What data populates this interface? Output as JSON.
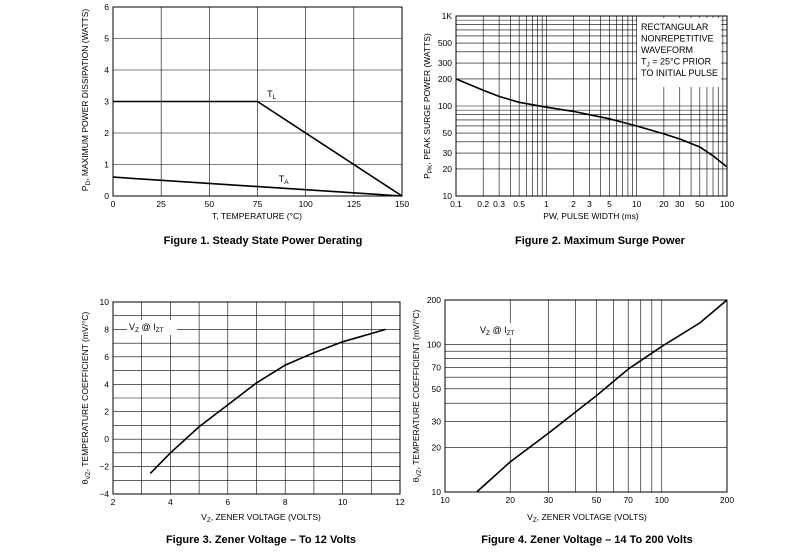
{
  "chart_data": [
    {
      "type": "line",
      "caption": "Figure 1. Steady State Power Derating",
      "xlabel": "T, TEMPERATURE (°C)",
      "ylabel": "P",
      "ylabel_sub": "D",
      "ylabel_rest": ", MAXIMUM POWER DISSIPATION (WATTS)",
      "x_scale": "linear",
      "y_scale": "linear",
      "xlim": [
        0,
        150
      ],
      "ylim": [
        0,
        6
      ],
      "xticks": [
        0,
        25,
        50,
        75,
        100,
        125,
        150
      ],
      "xtick_labels": [
        "0",
        "25",
        "50",
        "75",
        "100",
        "125",
        "150"
      ],
      "yticks": [
        0,
        1,
        2,
        3,
        4,
        5,
        6
      ],
      "ytick_labels": [
        "0",
        "1",
        "2",
        "3",
        "4",
        "5",
        "6"
      ],
      "xgrid": [
        0,
        25,
        50,
        75,
        100,
        125,
        150
      ],
      "ygrid": [
        0,
        1,
        2,
        3,
        4,
        5,
        6
      ],
      "grid": true,
      "series": [
        {
          "name": "T",
          "name_sub": "L",
          "label_at": [
            80,
            3.15
          ],
          "points": [
            [
              0,
              3
            ],
            [
              75,
              3
            ],
            [
              150,
              0
            ]
          ]
        },
        {
          "name": "T",
          "name_sub": "A",
          "label_at": [
            86,
            0.45
          ],
          "points": [
            [
              0,
              0.6
            ],
            [
              150,
              0
            ]
          ]
        }
      ]
    },
    {
      "type": "line",
      "caption": "Figure 2. Maximum Surge Power",
      "xlabel": "PW, PULSE WIDTH (ms)",
      "ylabel": "P",
      "ylabel_sub": "PK",
      "ylabel_rest": ", PEAK SURGE POWER (WATTS)",
      "x_scale": "log",
      "y_scale": "log",
      "xlim": [
        0.1,
        100
      ],
      "ylim": [
        10,
        1000
      ],
      "xticks": [
        0.1,
        0.2,
        0.3,
        0.5,
        1,
        2,
        3,
        5,
        10,
        20,
        30,
        50,
        100
      ],
      "xtick_labels": [
        "0.1",
        "0.2",
        "0.3",
        "0.5",
        "1",
        "2",
        "3",
        "5",
        "10",
        "20",
        "30",
        "50",
        "100"
      ],
      "yticks": [
        10,
        20,
        30,
        50,
        100,
        200,
        300,
        500,
        1000
      ],
      "ytick_labels": [
        "10",
        "20",
        "30",
        "50",
        "100",
        "200",
        "300",
        "500",
        "1K"
      ],
      "xgrid": [
        0.1,
        0.2,
        0.3,
        0.4,
        0.5,
        0.6,
        0.7,
        0.8,
        0.9,
        1,
        2,
        3,
        4,
        5,
        6,
        7,
        8,
        9,
        10,
        20,
        30,
        40,
        50,
        60,
        70,
        80,
        90,
        100
      ],
      "ygrid": [
        10,
        20,
        30,
        40,
        50,
        60,
        70,
        80,
        90,
        100,
        200,
        300,
        400,
        500,
        600,
        700,
        800,
        900,
        1000
      ],
      "grid": true,
      "note_lines": [
        "RECTANGULAR",
        "NONREPETITIVE",
        "WAVEFORM"
      ],
      "note_tj": "T",
      "note_tj_sub": "J",
      "note_tj_rest": " = 25°C PRIOR",
      "note_last": "TO INITIAL PULSE",
      "series": [
        {
          "points": [
            [
              0.1,
              200
            ],
            [
              0.2,
              150
            ],
            [
              0.3,
              128
            ],
            [
              0.5,
              110
            ],
            [
              1,
              97
            ],
            [
              2,
              87
            ],
            [
              3,
              80
            ],
            [
              5,
              72
            ],
            [
              10,
              60
            ],
            [
              20,
              49
            ],
            [
              30,
              43
            ],
            [
              50,
              35
            ],
            [
              70,
              28
            ],
            [
              100,
              21
            ]
          ]
        }
      ]
    },
    {
      "type": "line",
      "caption": "Figure 3. Zener Voltage – To 12 Volts",
      "xlabel": "V",
      "xlabel_sub": "Z",
      "xlabel_rest": ", ZENER VOLTAGE (VOLTS)",
      "ylabel": "θ",
      "ylabel_sub": "VZ",
      "ylabel_rest": ", TEMPERATURE COEFFICIENT (mV/°C)",
      "x_scale": "linear",
      "y_scale": "linear",
      "xlim": [
        2,
        12
      ],
      "ylim": [
        -4,
        10
      ],
      "xticks": [
        2,
        4,
        6,
        8,
        10,
        12
      ],
      "xtick_labels": [
        "2",
        "4",
        "6",
        "8",
        "10",
        "12"
      ],
      "yticks": [
        -4,
        -2,
        0,
        2,
        4,
        6,
        8,
        10
      ],
      "ytick_labels": [
        "−4",
        "−2",
        "0",
        "2",
        "4",
        "6",
        "8",
        "10"
      ],
      "xgrid": [
        2,
        3,
        4,
        5,
        6,
        7,
        8,
        9,
        10,
        11,
        12
      ],
      "ygrid": [
        -4,
        -3,
        -2,
        -1,
        0,
        1,
        2,
        3,
        4,
        5,
        6,
        7,
        8,
        9,
        10
      ],
      "grid": true,
      "legend": "V",
      "legend_sub": "Z",
      "legend_mid": " @ I",
      "legend_sub2": "ZT",
      "series": [
        {
          "points": [
            [
              3.3,
              -2.5
            ],
            [
              4,
              -1
            ],
            [
              5,
              0.9
            ],
            [
              6,
              2.5
            ],
            [
              7,
              4.1
            ],
            [
              8,
              5.4
            ],
            [
              9,
              6.3
            ],
            [
              10,
              7.1
            ],
            [
              11.5,
              8
            ]
          ]
        }
      ]
    },
    {
      "type": "line",
      "caption": "Figure 4. Zener Voltage – 14 To 200 Volts",
      "xlabel": "V",
      "xlabel_sub": "Z",
      "xlabel_rest": ", ZENER VOLTAGE (VOLTS)",
      "ylabel": "θ",
      "ylabel_sub": "VZ",
      "ylabel_rest": ", TEMPERATURE COEFFICIENT (mV/°C)",
      "x_scale": "log",
      "y_scale": "log",
      "xlim": [
        10,
        200
      ],
      "ylim": [
        10,
        200
      ],
      "xticks": [
        10,
        20,
        30,
        50,
        70,
        100,
        200
      ],
      "xtick_labels": [
        "10",
        "20",
        "30",
        "50",
        "70",
        "100",
        "200"
      ],
      "yticks": [
        10,
        20,
        30,
        50,
        70,
        100,
        200
      ],
      "ytick_labels": [
        "10",
        "20",
        "30",
        "50",
        "70",
        "100",
        "200"
      ],
      "xgrid": [
        10,
        20,
        30,
        40,
        50,
        60,
        70,
        80,
        90,
        100,
        200
      ],
      "ygrid": [
        10,
        20,
        30,
        40,
        50,
        60,
        70,
        80,
        90,
        100,
        200
      ],
      "grid": true,
      "legend": "V",
      "legend_sub": "Z",
      "legend_mid": " @ I",
      "legend_sub2": "ZT",
      "series": [
        {
          "points": [
            [
              14,
              10
            ],
            [
              20,
              16
            ],
            [
              30,
              25
            ],
            [
              50,
              45
            ],
            [
              70,
              68
            ],
            [
              100,
              97
            ],
            [
              150,
              140
            ],
            [
              200,
              200
            ]
          ]
        }
      ]
    }
  ]
}
